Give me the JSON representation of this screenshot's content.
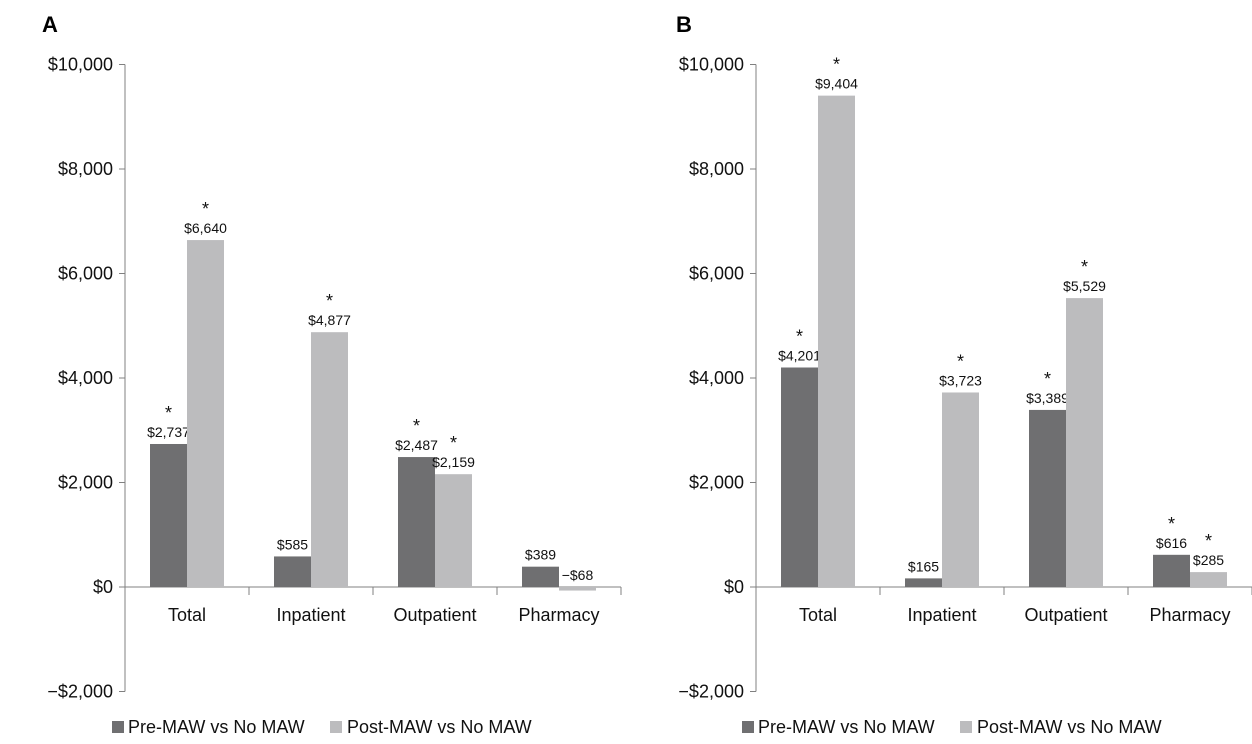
{
  "colors": {
    "pre": "#6f6f71",
    "post": "#bcbcbe",
    "axis": "#808080",
    "text": "#111111"
  },
  "legend": {
    "pre_label": "Pre-MAW vs No MAW",
    "post_label": "Post-MAW vs No MAW"
  },
  "chart_data": [
    {
      "type": "bar",
      "panel": "A",
      "categories": [
        "Total",
        "Inpatient",
        "Outpatient",
        "Pharmacy"
      ],
      "ylim": [
        -2000,
        10000
      ],
      "yticks": [
        -2000,
        0,
        2000,
        4000,
        6000,
        8000,
        10000
      ],
      "ytick_labels": [
        "−$2,000",
        "$0",
        "$2,000",
        "$4,000",
        "$6,000",
        "$8,000",
        "$10,000"
      ],
      "legend_position": "bottom",
      "series": [
        {
          "name": "Pre-MAW vs No MAW",
          "values": [
            2737,
            585,
            2487,
            389
          ],
          "labels": [
            "$2,737",
            "$585",
            "$2,487",
            "$389"
          ],
          "significant": [
            true,
            false,
            true,
            false
          ]
        },
        {
          "name": "Post-MAW vs No MAW",
          "values": [
            6640,
            4877,
            2159,
            -68
          ],
          "labels": [
            "$6,640",
            "$4,877",
            "$2,159",
            "−$68"
          ],
          "significant": [
            true,
            true,
            true,
            false
          ]
        }
      ]
    },
    {
      "type": "bar",
      "panel": "B",
      "categories": [
        "Total",
        "Inpatient",
        "Outpatient",
        "Pharmacy"
      ],
      "ylim": [
        -2000,
        10000
      ],
      "yticks": [
        -2000,
        0,
        2000,
        4000,
        6000,
        8000,
        10000
      ],
      "ytick_labels": [
        "−$2,000",
        "$0",
        "$2,000",
        "$4,000",
        "$6,000",
        "$8,000",
        "$10,000"
      ],
      "legend_position": "bottom",
      "series": [
        {
          "name": "Pre-MAW vs No MAW",
          "values": [
            4201,
            165,
            3389,
            616
          ],
          "labels": [
            "$4,201",
            "$165",
            "$3,389",
            "$616"
          ],
          "significant": [
            true,
            false,
            true,
            true
          ]
        },
        {
          "name": "Post-MAW vs No MAW",
          "values": [
            9404,
            3723,
            5529,
            285
          ],
          "labels": [
            "$9,404",
            "$3,723",
            "$5,529",
            "$285"
          ],
          "significant": [
            true,
            true,
            true,
            true
          ]
        }
      ]
    }
  ],
  "significance_marker": "*"
}
